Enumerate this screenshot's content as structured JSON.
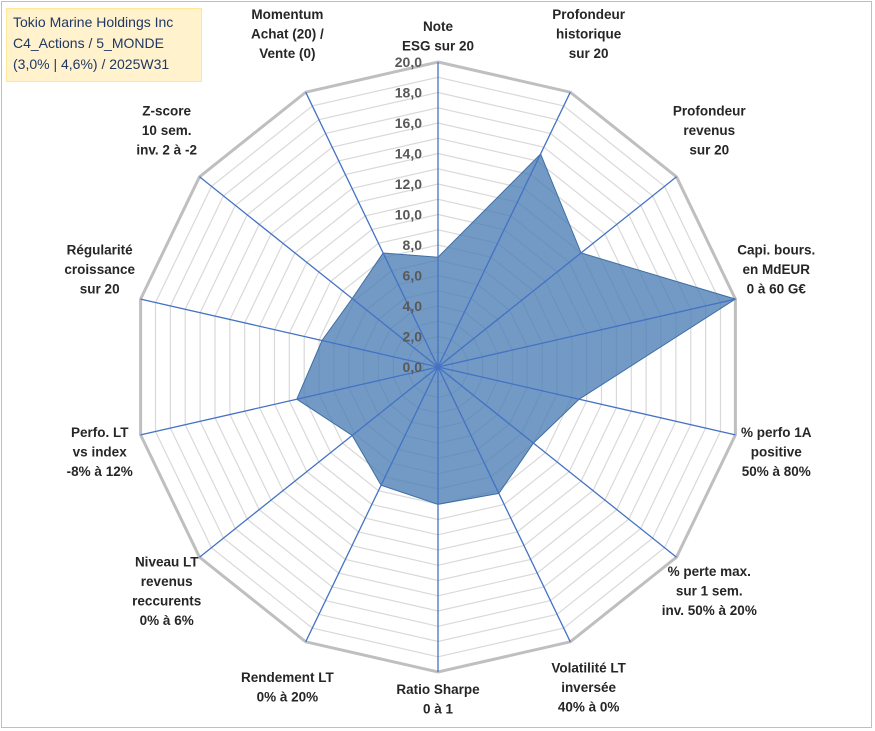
{
  "header": {
    "line1": "Tokio Marine Holdings Inc",
    "line2": "C4_Actions / 5_MONDE",
    "line3": "(3,0% | 4,6%) / 2025W31"
  },
  "colors": {
    "fill": "#4a7db5",
    "axis": "#4472c4",
    "ring": "#bfbfbf",
    "ring_minor": "#d9d9d9",
    "title_bg": "#fff2cc"
  },
  "chart_data": {
    "type": "radar",
    "rmin": 0,
    "rmax": 20,
    "tick_step": 2,
    "tick_labels": [
      "0,0",
      "2,0",
      "4,0",
      "6,0",
      "8,0",
      "10,0",
      "12,0",
      "14,0",
      "16,0",
      "18,0",
      "20,0"
    ],
    "axes": [
      {
        "lines": [
          "Note",
          "ESG sur 20"
        ]
      },
      {
        "lines": [
          "Profondeur",
          "historique",
          "sur 20"
        ]
      },
      {
        "lines": [
          "Profondeur",
          "revenus",
          "sur 20"
        ]
      },
      {
        "lines": [
          "Capi. bours.",
          "en MdEUR",
          "0 à 60 G€"
        ]
      },
      {
        "lines": [
          "% perfo 1A",
          "positive",
          "50% à 80%"
        ]
      },
      {
        "lines": [
          "% perte max.",
          "sur 1 sem.",
          "inv. 50% à 20%"
        ]
      },
      {
        "lines": [
          "Volatilité LT",
          "inversée",
          "40% à 0%"
        ]
      },
      {
        "lines": [
          "Ratio Sharpe",
          "0 à 1"
        ]
      },
      {
        "lines": [
          "Rendement LT",
          "0% à 20%"
        ]
      },
      {
        "lines": [
          "Niveau LT",
          "revenus",
          "reccurents",
          "0% à 6%"
        ]
      },
      {
        "lines": [
          "Perfo. LT",
          "vs index",
          "-8% à 12%"
        ]
      },
      {
        "lines": [
          "Régularité",
          "croissance",
          "sur 20"
        ]
      },
      {
        "lines": [
          "Z-score",
          "10 sem.",
          "inv. 2 à -2"
        ]
      },
      {
        "lines": [
          "Momentum",
          "Achat (20) /",
          "Vente (0)"
        ]
      }
    ],
    "values": [
      7.2,
      15.5,
      12.0,
      20.0,
      9.5,
      8.0,
      9.2,
      9.0,
      8.6,
      7.2,
      9.5,
      7.8,
      7.2,
      8.3
    ],
    "grid": true,
    "legend": "none"
  }
}
